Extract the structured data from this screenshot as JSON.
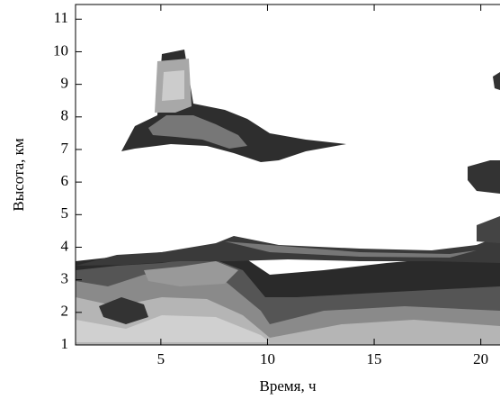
{
  "chart_data": {
    "type": "contour",
    "x_label": "Время, ч",
    "y_label": "Высота, км",
    "xlim": [
      1,
      20.9
    ],
    "xticks": [
      5,
      10,
      15,
      20
    ],
    "ylim": [
      1,
      11.45
    ],
    "yticks": [
      1,
      2,
      3,
      4,
      5,
      6,
      7,
      8,
      9,
      10,
      11
    ]
  }
}
